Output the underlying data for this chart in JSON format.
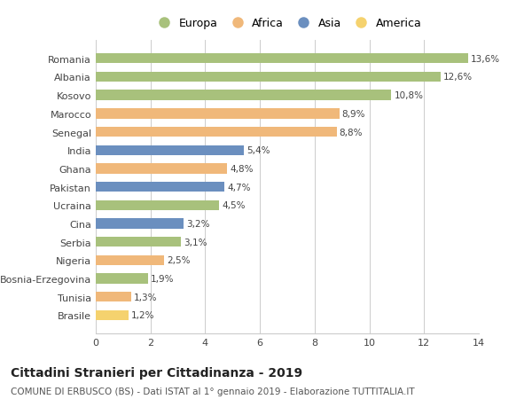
{
  "categories": [
    "Brasile",
    "Tunisia",
    "Bosnia-Erzegovina",
    "Nigeria",
    "Serbia",
    "Cina",
    "Ucraina",
    "Pakistan",
    "Ghana",
    "India",
    "Senegal",
    "Marocco",
    "Kosovo",
    "Albania",
    "Romania"
  ],
  "values": [
    1.2,
    1.3,
    1.9,
    2.5,
    3.1,
    3.2,
    4.5,
    4.7,
    4.8,
    5.4,
    8.8,
    8.9,
    10.8,
    12.6,
    13.6
  ],
  "labels": [
    "1,2%",
    "1,3%",
    "1,9%",
    "2,5%",
    "3,1%",
    "3,2%",
    "4,5%",
    "4,7%",
    "4,8%",
    "5,4%",
    "8,8%",
    "8,9%",
    "10,8%",
    "12,6%",
    "13,6%"
  ],
  "continents": [
    "America",
    "Africa",
    "Europa",
    "Africa",
    "Europa",
    "Asia",
    "Europa",
    "Asia",
    "Africa",
    "Asia",
    "Africa",
    "Africa",
    "Europa",
    "Europa",
    "Europa"
  ],
  "colors": {
    "Europa": "#a8c17c",
    "Africa": "#f0b87a",
    "Asia": "#6b8fbf",
    "America": "#f5d26e"
  },
  "legend_order": [
    "Europa",
    "Africa",
    "Asia",
    "America"
  ],
  "legend_colors": [
    "#a8c17c",
    "#f0b87a",
    "#6b8fbf",
    "#f5d26e"
  ],
  "title": "Cittadini Stranieri per Cittadinanza - 2019",
  "subtitle": "COMUNE DI ERBUSCO (BS) - Dati ISTAT al 1° gennaio 2019 - Elaborazione TUTTITALIA.IT",
  "xlim": [
    0,
    14
  ],
  "xticks": [
    0,
    2,
    4,
    6,
    8,
    10,
    12,
    14
  ],
  "background_color": "#ffffff",
  "bar_height": 0.55,
  "grid_color": "#cccccc",
  "title_fontsize": 10,
  "subtitle_fontsize": 7.5,
  "label_fontsize": 7.5,
  "ytick_fontsize": 8,
  "xtick_fontsize": 8,
  "legend_fontsize": 9
}
